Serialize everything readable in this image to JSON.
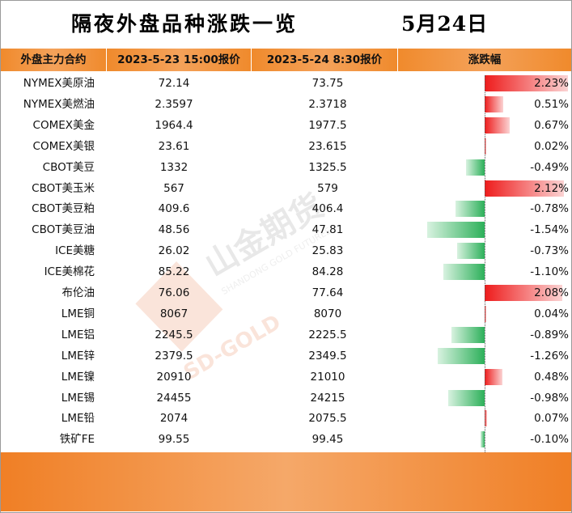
{
  "title": "隔夜外盘品种涨跌一览",
  "date": "5月24日",
  "headers": {
    "name": "外盘主力合约",
    "price1": "2023-5-23 15:00报价",
    "price2": "2023-5-24 8:30报价",
    "change": "涨跌幅"
  },
  "colors": {
    "header": "#f08a2c",
    "up_bar": "#ee1c1c",
    "down_bar": "#2db05a",
    "footer": "#f07f25"
  },
  "chart_data": {
    "type": "bar",
    "categories": [
      "NYMEX美原油",
      "NYMEX美燃油",
      "COMEX美金",
      "COMEX美银",
      "CBOT美豆",
      "CBOT美玉米",
      "CBOT美豆粕",
      "CBOT美豆油",
      "ICE美糖",
      "ICE美棉花",
      "布伦油",
      "LME铜",
      "LME铝",
      "LME锌",
      "LME镍",
      "LME锡",
      "LME铅",
      "铁矿FE"
    ],
    "values": [
      2.23,
      0.51,
      0.67,
      0.02,
      -0.49,
      2.12,
      -0.78,
      -1.54,
      -0.73,
      -1.1,
      2.08,
      0.04,
      -0.89,
      -1.26,
      0.48,
      -0.98,
      0.07,
      -0.1
    ],
    "ylabel": "涨跌幅",
    "unit": "%"
  },
  "rows": [
    {
      "name": "NYMEX美原油",
      "p1": "72.14",
      "p2": "73.75",
      "pct": "2.23%"
    },
    {
      "name": "NYMEX美燃油",
      "p1": "2.3597",
      "p2": "2.3718",
      "pct": "0.51%"
    },
    {
      "name": "COMEX美金",
      "p1": "1964.4",
      "p2": "1977.5",
      "pct": "0.67%"
    },
    {
      "name": "COMEX美银",
      "p1": "23.61",
      "p2": "23.615",
      "pct": "0.02%"
    },
    {
      "name": "CBOT美豆",
      "p1": "1332",
      "p2": "1325.5",
      "pct": "-0.49%"
    },
    {
      "name": "CBOT美玉米",
      "p1": "567",
      "p2": "579",
      "pct": "2.12%"
    },
    {
      "name": "CBOT美豆粕",
      "p1": "409.6",
      "p2": "406.4",
      "pct": "-0.78%"
    },
    {
      "name": "CBOT美豆油",
      "p1": "48.56",
      "p2": "47.81",
      "pct": "-1.54%"
    },
    {
      "name": "ICE美糖",
      "p1": "26.02",
      "p2": "25.83",
      "pct": "-0.73%"
    },
    {
      "name": "ICE美棉花",
      "p1": "85.22",
      "p2": "84.28",
      "pct": "-1.10%"
    },
    {
      "name": "布伦油",
      "p1": "76.06",
      "p2": "77.64",
      "pct": "2.08%"
    },
    {
      "name": "LME铜",
      "p1": "8067",
      "p2": "8070",
      "pct": "0.04%"
    },
    {
      "name": "LME铝",
      "p1": "2245.5",
      "p2": "2225.5",
      "pct": "-0.89%"
    },
    {
      "name": "LME锌",
      "p1": "2379.5",
      "p2": "2349.5",
      "pct": "-1.26%"
    },
    {
      "name": "LME镍",
      "p1": "20910",
      "p2": "21010",
      "pct": "0.48%"
    },
    {
      "name": "LME锡",
      "p1": "24455",
      "p2": "24215",
      "pct": "-0.98%"
    },
    {
      "name": "LME铅",
      "p1": "2074",
      "p2": "2075.5",
      "pct": "0.07%"
    },
    {
      "name": "铁矿FE",
      "p1": "99.55",
      "p2": "99.45",
      "pct": "-0.10%"
    }
  ],
  "watermark": {
    "text_cn": "山金期货",
    "text_en": "SHANDONG GOLD FUTURES",
    "text_logo": "SD-GOLD"
  }
}
